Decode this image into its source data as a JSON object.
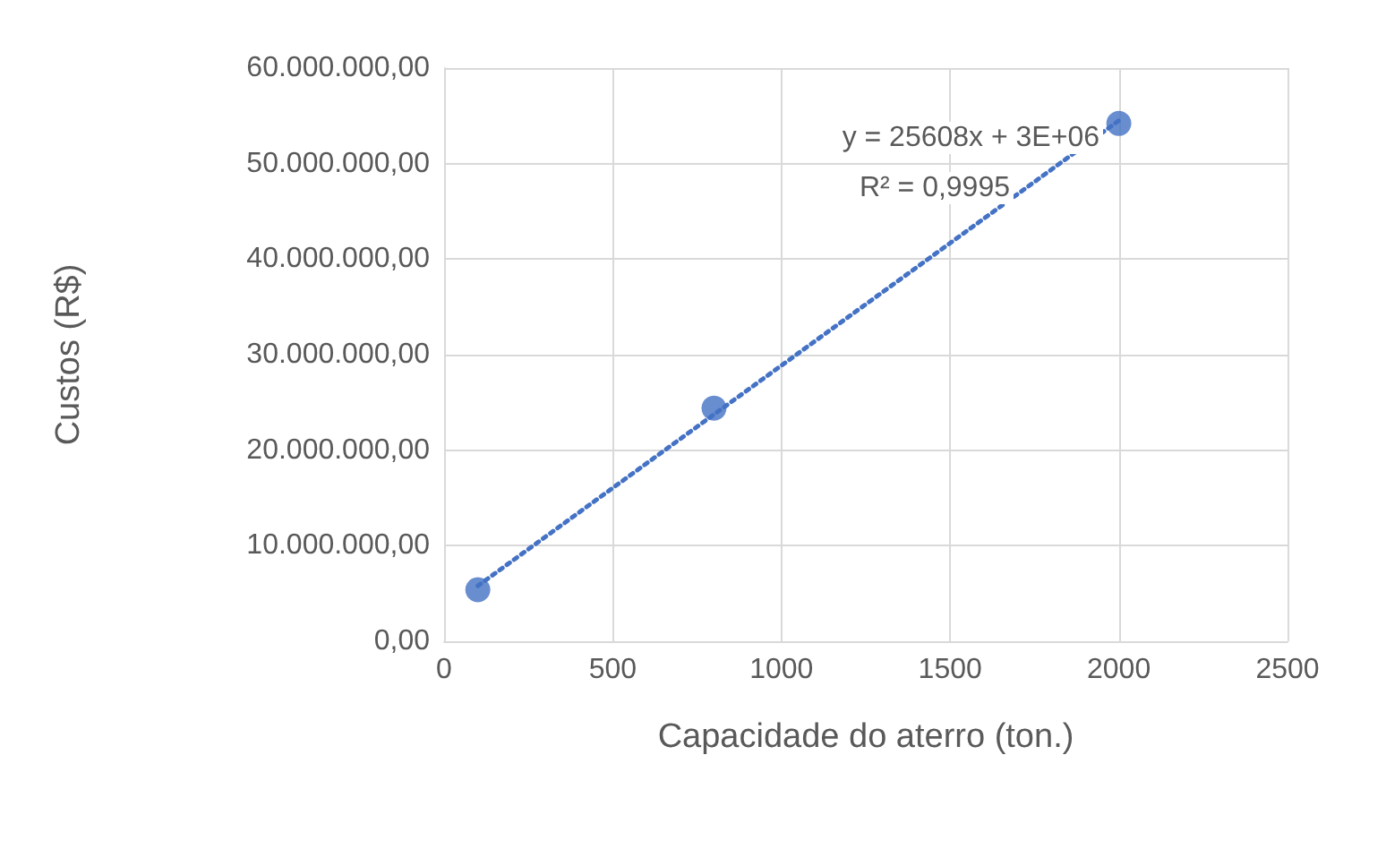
{
  "chart_data": {
    "type": "scatter",
    "xlabel": "Capacidade do aterro (ton.)",
    "ylabel": "Custos (R$)",
    "x": [
      100,
      800,
      2000
    ],
    "series": [
      {
        "type": "scatter",
        "color": "#4472c4",
        "values": [
          5400000,
          24400000,
          54200000
        ],
        "marker": "circle"
      },
      {
        "type": "line",
        "color": "#4472c4",
        "x": [
          100,
          2000
        ],
        "values": [
          5800000,
          54500000
        ],
        "line_style": "dotted",
        "marker": "none"
      }
    ],
    "xlim": [
      0,
      2500
    ],
    "xticks": [
      0,
      500,
      1000,
      1500,
      2000,
      2500
    ],
    "ylim": [
      0,
      60000000
    ],
    "yticks": [
      {
        "value": 0,
        "label": "0,00"
      },
      {
        "value": 10000000,
        "label": "10.000.000,00"
      },
      {
        "value": 20000000,
        "label": "20.000.000,00"
      },
      {
        "value": 30000000,
        "label": "30.000.000,00"
      },
      {
        "value": 40000000,
        "label": "40.000.000,00"
      },
      {
        "value": 50000000,
        "label": "50.000.000,00"
      },
      {
        "value": 60000000,
        "label": "60.000.000,00"
      }
    ],
    "grid": true,
    "annotations": [
      "y = 25608x + 3E+06",
      "R² = 0,9995"
    ]
  }
}
